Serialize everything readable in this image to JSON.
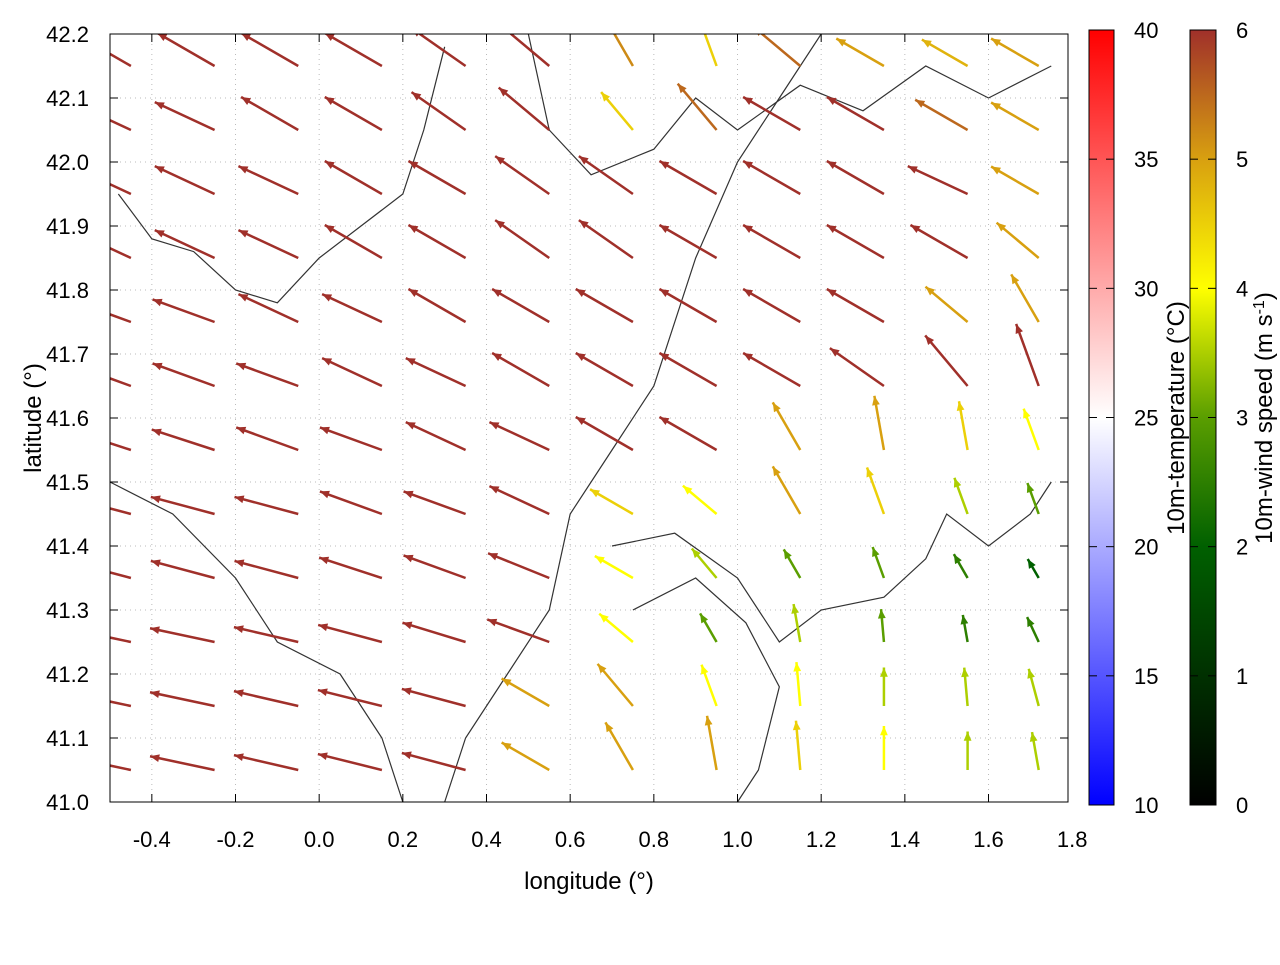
{
  "chart_data": {
    "type": "vector-field",
    "xlabel": "longitude (°)",
    "ylabel": "latitude (°)",
    "xlim": [
      -0.5,
      1.79
    ],
    "ylim": [
      41.0,
      42.2
    ],
    "xticks": [
      "-0.4",
      "-0.2",
      "0.0",
      "0.2",
      "0.4",
      "0.6",
      "0.8",
      "1.0",
      "1.2",
      "1.4",
      "1.6",
      "1.8"
    ],
    "xtick_values": [
      -0.4,
      -0.2,
      0.0,
      0.2,
      0.4,
      0.6,
      0.8,
      1.0,
      1.2,
      1.4,
      1.6,
      1.8
    ],
    "yticks": [
      "41.0",
      "41.1",
      "41.2",
      "41.3",
      "41.4",
      "41.5",
      "41.6",
      "41.7",
      "41.8",
      "41.9",
      "42.0",
      "42.1",
      "42.2"
    ],
    "ytick_values": [
      41.0,
      41.1,
      41.2,
      41.3,
      41.4,
      41.5,
      41.6,
      41.7,
      41.8,
      41.9,
      42.0,
      42.1,
      42.2
    ],
    "grid": true,
    "colorbars": [
      {
        "label": "10m-temperature (°C)",
        "range": [
          10,
          40
        ],
        "ticks": [
          "10",
          "15",
          "20",
          "25",
          "30",
          "35",
          "40"
        ],
        "stops": [
          [
            10,
            "#0000ff"
          ],
          [
            25,
            "#ffffff"
          ],
          [
            40,
            "#ff0000"
          ]
        ]
      },
      {
        "label": "10m-wind speed (m s-1)",
        "label_main": "10m-wind speed (m s",
        "label_sup": "-1",
        "label_end": ")",
        "range": [
          0,
          6
        ],
        "ticks": [
          "0",
          "1",
          "2",
          "3",
          "4",
          "5",
          "6"
        ],
        "stops": [
          [
            0,
            "#000000"
          ],
          [
            2,
            "#006000"
          ],
          [
            3,
            "#5a9e00"
          ],
          [
            4,
            "#ffff00"
          ],
          [
            5,
            "#d8a010"
          ],
          [
            6,
            "#a0302a"
          ]
        ]
      }
    ],
    "vectors": {
      "units": "speed m s-1, direction degrees (toward, CCW from east)",
      "lon": [
        -0.45,
        -0.25,
        -0.05,
        0.15,
        0.35,
        0.55,
        0.75,
        0.95,
        1.15,
        1.35,
        1.55,
        1.72
      ],
      "lat": [
        42.15,
        42.05,
        41.95,
        41.85,
        41.75,
        41.65,
        41.55,
        41.45,
        41.35,
        41.25,
        41.15,
        41.05
      ],
      "speed": [
        [
          6,
          6,
          6,
          6,
          6,
          6,
          5.2,
          4.5,
          5.5,
          5,
          4.8,
          5
        ],
        [
          6,
          6,
          6,
          6,
          6,
          6,
          4.5,
          5.5,
          6,
          6,
          5.5,
          5
        ],
        [
          6,
          6,
          6,
          6,
          6,
          6,
          6,
          6,
          6,
          6,
          6,
          5
        ],
        [
          6,
          6,
          6,
          6,
          6,
          6,
          6,
          6,
          6,
          6,
          6,
          5
        ],
        [
          6,
          6,
          6,
          6,
          6,
          6,
          6,
          6,
          6,
          6,
          5,
          5
        ],
        [
          6,
          6,
          6,
          6,
          6,
          6,
          6,
          6,
          6,
          6,
          6,
          6
        ],
        [
          6,
          6,
          6,
          6,
          6,
          6,
          6,
          6,
          5,
          5,
          4.5,
          4
        ],
        [
          6,
          6,
          6,
          6,
          6,
          6,
          4.5,
          4,
          5,
          4.5,
          3.5,
          3
        ],
        [
          6,
          6,
          6,
          6,
          6,
          6,
          4,
          3.5,
          3,
          3,
          2.5,
          2
        ],
        [
          6,
          6,
          6,
          6,
          6,
          6,
          4,
          3,
          3.5,
          3,
          2.5,
          2.5
        ],
        [
          6,
          6,
          6,
          6,
          6,
          5,
          5,
          4,
          4,
          3.5,
          3.5,
          3.5
        ],
        [
          6,
          6,
          6,
          6,
          6,
          5,
          5,
          5,
          4.5,
          4,
          3.5,
          3.5
        ]
      ],
      "direction": [
        [
          150,
          150,
          150,
          150,
          145,
          140,
          120,
          110,
          140,
          150,
          150,
          150
        ],
        [
          155,
          155,
          150,
          150,
          145,
          140,
          130,
          130,
          150,
          150,
          150,
          150
        ],
        [
          155,
          155,
          155,
          150,
          150,
          145,
          145,
          150,
          150,
          150,
          155,
          150
        ],
        [
          155,
          155,
          155,
          150,
          150,
          145,
          145,
          150,
          150,
          150,
          150,
          140
        ],
        [
          160,
          160,
          155,
          155,
          150,
          150,
          150,
          150,
          150,
          150,
          140,
          120
        ],
        [
          160,
          160,
          160,
          155,
          155,
          150,
          150,
          150,
          150,
          145,
          130,
          110
        ],
        [
          162,
          162,
          160,
          160,
          155,
          155,
          150,
          150,
          120,
          100,
          100,
          110
        ],
        [
          165,
          165,
          165,
          160,
          160,
          155,
          150,
          140,
          120,
          110,
          110,
          110
        ],
        [
          165,
          165,
          165,
          162,
          160,
          158,
          150,
          130,
          120,
          110,
          120,
          120
        ],
        [
          168,
          168,
          167,
          165,
          163,
          160,
          140,
          120,
          100,
          95,
          100,
          115
        ],
        [
          168,
          168,
          167,
          166,
          165,
          150,
          130,
          110,
          95,
          90,
          95,
          105
        ],
        [
          168,
          168,
          167,
          166,
          165,
          150,
          120,
          100,
          95,
          90,
          90,
          100
        ]
      ]
    },
    "contours": [
      [
        [
          -0.48,
          41.95
        ],
        [
          -0.4,
          41.88
        ],
        [
          -0.3,
          41.86
        ],
        [
          -0.2,
          41.8
        ],
        [
          -0.1,
          41.78
        ],
        [
          0.0,
          41.85
        ],
        [
          0.1,
          41.9
        ],
        [
          0.2,
          41.95
        ],
        [
          0.25,
          42.05
        ],
        [
          0.3,
          42.18
        ]
      ],
      [
        [
          0.7,
          41.4
        ],
        [
          0.85,
          41.42
        ],
        [
          1.0,
          41.35
        ],
        [
          1.1,
          41.25
        ],
        [
          1.2,
          41.3
        ],
        [
          1.35,
          41.32
        ],
        [
          1.45,
          41.38
        ],
        [
          1.5,
          41.45
        ],
        [
          1.6,
          41.4
        ],
        [
          1.7,
          41.45
        ],
        [
          1.75,
          41.5
        ]
      ],
      [
        [
          0.75,
          41.3
        ],
        [
          0.9,
          41.35
        ],
        [
          1.02,
          41.28
        ],
        [
          1.1,
          41.18
        ],
        [
          1.05,
          41.05
        ],
        [
          1.0,
          41.0
        ]
      ],
      [
        [
          0.3,
          41.0
        ],
        [
          0.35,
          41.1
        ],
        [
          0.45,
          41.2
        ],
        [
          0.55,
          41.3
        ],
        [
          0.6,
          41.45
        ],
        [
          0.7,
          41.55
        ],
        [
          0.8,
          41.65
        ],
        [
          0.9,
          41.85
        ],
        [
          1.0,
          42.0
        ],
        [
          1.1,
          42.1
        ],
        [
          1.2,
          42.2
        ]
      ],
      [
        [
          -0.5,
          41.5
        ],
        [
          -0.35,
          41.45
        ],
        [
          -0.2,
          41.35
        ],
        [
          -0.1,
          41.25
        ],
        [
          0.05,
          41.2
        ],
        [
          0.15,
          41.1
        ],
        [
          0.2,
          41.0
        ]
      ],
      [
        [
          0.5,
          42.2
        ],
        [
          0.55,
          42.05
        ],
        [
          0.65,
          41.98
        ],
        [
          0.8,
          42.02
        ],
        [
          0.9,
          42.1
        ],
        [
          1.0,
          42.05
        ],
        [
          1.15,
          42.12
        ],
        [
          1.3,
          42.08
        ],
        [
          1.45,
          42.15
        ],
        [
          1.6,
          42.1
        ],
        [
          1.75,
          42.15
        ]
      ]
    ]
  }
}
